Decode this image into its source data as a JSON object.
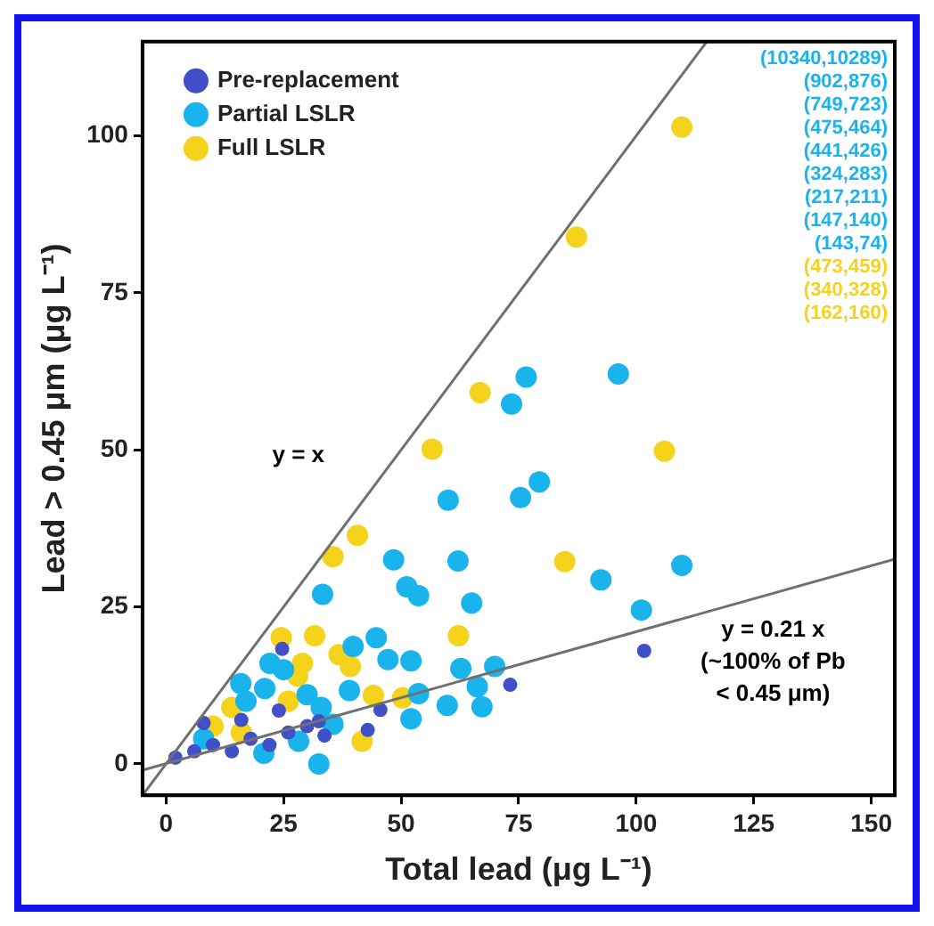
{
  "chart_data": {
    "type": "scatter",
    "xlabel": "Total lead (μg L⁻¹)",
    "ylabel": "Lead > 0.45 μm (μg L⁻¹)",
    "xlim": [
      -5,
      155
    ],
    "ylim": [
      -5,
      115
    ],
    "xticks": [
      0,
      25,
      50,
      75,
      100,
      125,
      150
    ],
    "yticks": [
      0,
      25,
      50,
      75,
      100
    ],
    "grid": false,
    "legend": "top left",
    "marker": "circle",
    "series": [
      {
        "name": "Pre-replacement",
        "color": "#4150c8",
        "x": [
          101.7,
          73.2,
          45.6,
          24.7,
          32.5,
          42.9,
          33.7,
          2,
          6,
          10,
          14,
          18,
          22,
          26,
          30,
          8,
          16,
          24
        ],
        "values": [
          18.0,
          12.6,
          8.6,
          18.3,
          6.8,
          5.4,
          4.5,
          1,
          2,
          3,
          2,
          4,
          3,
          5,
          6,
          6.5,
          7,
          8.5
        ]
      },
      {
        "name": "Partial LSLR",
        "color": "#19b4ec",
        "x": [
          76.6,
          96.2,
          73.5,
          79.4,
          75.4,
          60.0,
          48.4,
          62.1,
          109.7,
          92.5,
          51.2,
          53.7,
          33.3,
          65.0,
          101.1,
          44.7,
          39.8,
          47.2,
          52.1,
          62.7,
          69.9,
          66.2,
          39.0,
          53.7,
          59.8,
          67.2,
          52.1,
          32.5,
          22.1,
          15.9,
          33,
          28.2,
          20.8,
          35.5,
          8,
          17,
          21,
          25,
          30
        ],
        "values": [
          61.6,
          62.1,
          57.3,
          44.9,
          42.4,
          42.0,
          32.5,
          32.3,
          31.6,
          29.3,
          28.2,
          26.8,
          27.0,
          25.6,
          24.5,
          20.1,
          18.7,
          16.6,
          16.4,
          15.2,
          15.5,
          12.3,
          11.7,
          11.2,
          9.3,
          9.1,
          7.2,
          0,
          16,
          12.8,
          9,
          3.6,
          1.7,
          6.3,
          4,
          10,
          12,
          15,
          11
        ]
      },
      {
        "name": "Full LSLR",
        "color": "#f5d31c",
        "x": [
          109.7,
          87.3,
          66.8,
          56.6,
          106.0,
          40.7,
          35.5,
          84.8,
          62.2,
          31.6,
          24.5,
          36.8,
          39.2,
          44.1,
          50.3,
          41.7,
          28,
          26,
          10,
          14,
          16,
          29
        ],
        "values": [
          101.4,
          83.9,
          59.1,
          50.1,
          49.8,
          36.4,
          33.0,
          32.2,
          20.4,
          20.4,
          20.1,
          17.4,
          15.5,
          10.9,
          10.5,
          3.6,
          14,
          10,
          6,
          9,
          5,
          16
        ]
      },
      {
        "type": "line",
        "name": "y = x",
        "marker": "none",
        "color": "#707070",
        "x": [
          -5,
          115
        ],
        "values": [
          -5,
          115
        ]
      },
      {
        "type": "line",
        "name": "y = 0.21 x",
        "marker": "none",
        "color": "#707070",
        "x": [
          -5,
          155
        ],
        "values": [
          -1,
          32.6
        ]
      }
    ],
    "annotations": [
      "(~100% of Pb < 0.45 μm)",
      "(10340,10289)",
      "(902,876)",
      "(749,723)",
      "(475,464)",
      "(441,426)",
      "(324,283)",
      "(217,211)",
      "(147,140)",
      "(143,74)",
      "(473,459)",
      "(340,328)",
      "(162,160)"
    ]
  }
}
